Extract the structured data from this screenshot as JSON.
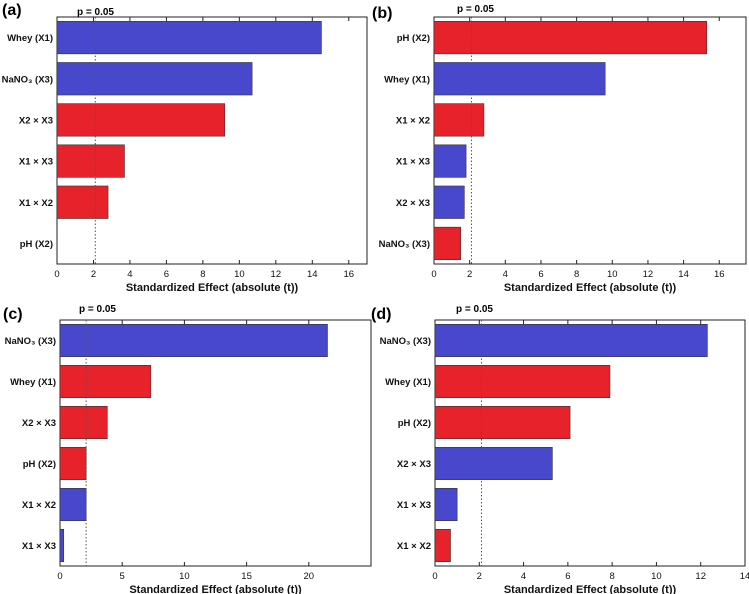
{
  "colors": {
    "blue": "#4848cc",
    "red": "#e8222a",
    "axis": "#222222",
    "threshold": "#555555"
  },
  "chart_data": [
    {
      "type": "bar",
      "panel_label": "(a)",
      "threshold_label": "p = 0.05",
      "threshold": 2.1,
      "xlabel": "Standardized Effect (absolute (t))",
      "xlim": [
        0,
        17
      ],
      "xticks": [
        "0",
        "2",
        "4",
        "6",
        "8",
        "10",
        "12",
        "14",
        "16"
      ],
      "categories": [
        "Whey (X1)",
        "NaNO₃ (X3)",
        "X2 × X3",
        "X1 × X3",
        "X1 × X2",
        "pH (X2)"
      ],
      "values": [
        14.5,
        10.7,
        9.2,
        3.7,
        2.8,
        0
      ],
      "colors": [
        "blue",
        "blue",
        "red",
        "red",
        "red",
        "red"
      ]
    },
    {
      "type": "bar",
      "panel_label": "(b)",
      "threshold_label": "p = 0.05",
      "threshold": 2.1,
      "xlabel": "Standardized Effect (absolute (t))",
      "xlim": [
        0,
        17.5
      ],
      "xticks": [
        "0",
        "2",
        "4",
        "6",
        "8",
        "10",
        "12",
        "14",
        "16"
      ],
      "categories": [
        "pH (X2)",
        "Whey (X1)",
        "X1 × X2",
        "X1 × X3",
        "X2 × X3",
        "NaNO₃ (X3)"
      ],
      "values": [
        15.3,
        9.6,
        2.8,
        1.8,
        1.7,
        1.5
      ],
      "colors": [
        "red",
        "blue",
        "red",
        "blue",
        "blue",
        "red"
      ]
    },
    {
      "type": "bar",
      "panel_label": "(c)",
      "threshold_label": "p = 0.05",
      "threshold": 2.1,
      "xlabel": "Standardized Effect (absolute (t))",
      "xlim": [
        0,
        25
      ],
      "xticks": [
        "0",
        "5",
        "10",
        "15",
        "20"
      ],
      "categories": [
        "NaNO₃ (X3)",
        "Whey (X1)",
        "X2 × X3",
        "pH (X2)",
        "X1 × X2",
        "X1 × X3"
      ],
      "values": [
        21.5,
        7.3,
        3.8,
        2.1,
        2.1,
        0.3
      ],
      "colors": [
        "blue",
        "red",
        "red",
        "red",
        "blue",
        "blue"
      ]
    },
    {
      "type": "bar",
      "panel_label": "(d)",
      "threshold_label": "p = 0.05",
      "threshold": 2.1,
      "xlabel": "Standardized Effect (absolute (t))",
      "xlim": [
        0,
        14
      ],
      "xticks": [
        "0",
        "2",
        "4",
        "6",
        "8",
        "10",
        "12",
        "14"
      ],
      "categories": [
        "NaNO₃ (X3)",
        "Whey (X1)",
        "pH (X2)",
        "X2 × X3",
        "X1 × X3",
        "X1 × X2"
      ],
      "values": [
        12.3,
        7.9,
        6.1,
        5.3,
        1.0,
        0.7
      ],
      "colors": [
        "blue",
        "red",
        "red",
        "blue",
        "blue",
        "red"
      ]
    }
  ]
}
